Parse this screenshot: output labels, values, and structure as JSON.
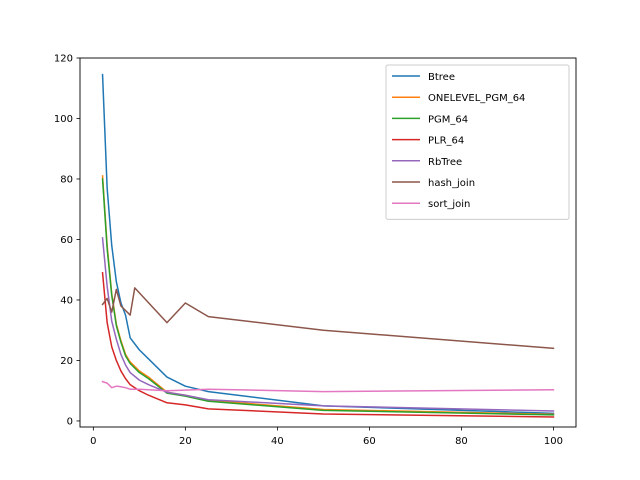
{
  "chart_data": {
    "type": "line",
    "title": "",
    "xlabel": "",
    "ylabel": "",
    "xlim": [
      -2.9,
      104.9
    ],
    "ylim": [
      -2.0,
      120.0
    ],
    "xticks": [
      0,
      20,
      40,
      60,
      80,
      100
    ],
    "yticks": [
      0,
      20,
      40,
      60,
      80,
      100,
      120
    ],
    "grid": false,
    "legend_position": "upper right",
    "series": [
      {
        "name": "Btree",
        "color": "#1f77b4",
        "points": [
          [
            2,
            114.5
          ],
          [
            3,
            77.0
          ],
          [
            4,
            58.0
          ],
          [
            5,
            46.0
          ],
          [
            6,
            39.0
          ],
          [
            7,
            35.0
          ],
          [
            8,
            27.5
          ],
          [
            10,
            23.5
          ],
          [
            12,
            20.5
          ],
          [
            16,
            14.5
          ],
          [
            20,
            11.5
          ],
          [
            25,
            9.7
          ],
          [
            50,
            5.0
          ],
          [
            100,
            2.5
          ]
        ]
      },
      {
        "name": "ONELEVEL_PGM_64",
        "color": "#ff7f0e",
        "points": [
          [
            2,
            81.0
          ],
          [
            3,
            58.0
          ],
          [
            4,
            42.0
          ],
          [
            5,
            32.0
          ],
          [
            6,
            26.5
          ],
          [
            7,
            22.0
          ],
          [
            8,
            19.5
          ],
          [
            10,
            16.5
          ],
          [
            12,
            14.5
          ],
          [
            16,
            9.5
          ],
          [
            20,
            8.5
          ],
          [
            25,
            6.8
          ],
          [
            50,
            3.8
          ],
          [
            100,
            2.2
          ]
        ]
      },
      {
        "name": "PGM_64",
        "color": "#2ca02c",
        "points": [
          [
            2,
            80.0
          ],
          [
            3,
            57.0
          ],
          [
            4,
            41.5
          ],
          [
            5,
            31.5
          ],
          [
            6,
            26.0
          ],
          [
            7,
            21.5
          ],
          [
            8,
            19.0
          ],
          [
            10,
            16.0
          ],
          [
            12,
            14.0
          ],
          [
            16,
            9.2
          ],
          [
            20,
            8.2
          ],
          [
            25,
            6.5
          ],
          [
            50,
            3.5
          ],
          [
            100,
            2.0
          ]
        ]
      },
      {
        "name": "PLR_64",
        "color": "#d62728",
        "points": [
          [
            2,
            49.0
          ],
          [
            3,
            32.5
          ],
          [
            4,
            24.5
          ],
          [
            5,
            20.0
          ],
          [
            6,
            16.5
          ],
          [
            7,
            14.0
          ],
          [
            8,
            12.0
          ],
          [
            10,
            10.0
          ],
          [
            12,
            8.5
          ],
          [
            16,
            6.0
          ],
          [
            20,
            5.3
          ],
          [
            25,
            4.0
          ],
          [
            50,
            2.3
          ],
          [
            100,
            1.3
          ]
        ]
      },
      {
        "name": "RbTree",
        "color": "#9467bd",
        "points": [
          [
            2,
            60.5
          ],
          [
            3,
            44.5
          ],
          [
            4,
            33.0
          ],
          [
            5,
            27.0
          ],
          [
            6,
            22.0
          ],
          [
            7,
            18.5
          ],
          [
            8,
            16.0
          ],
          [
            10,
            13.5
          ],
          [
            12,
            12.0
          ],
          [
            16,
            9.5
          ],
          [
            20,
            8.5
          ],
          [
            25,
            7.0
          ],
          [
            50,
            5.0
          ],
          [
            100,
            3.3
          ]
        ]
      },
      {
        "name": "hash_join",
        "color": "#8c564b",
        "points": [
          [
            2,
            38.5
          ],
          [
            3,
            40.5
          ],
          [
            4,
            36.0
          ],
          [
            5,
            43.5
          ],
          [
            6,
            38.0
          ],
          [
            8,
            35.0
          ],
          [
            9,
            44.0
          ],
          [
            16,
            32.5
          ],
          [
            20,
            39.0
          ],
          [
            25,
            34.5
          ],
          [
            50,
            30.0
          ],
          [
            100,
            24.0
          ]
        ]
      },
      {
        "name": "sort_join",
        "color": "#e377c2",
        "points": [
          [
            2,
            13.0
          ],
          [
            3,
            12.5
          ],
          [
            4,
            11.0
          ],
          [
            5,
            11.5
          ],
          [
            6,
            11.3
          ],
          [
            7,
            11.0
          ],
          [
            8,
            10.5
          ],
          [
            10,
            10.5
          ],
          [
            12,
            10.3
          ],
          [
            16,
            10.0
          ],
          [
            20,
            10.2
          ],
          [
            25,
            10.5
          ],
          [
            50,
            9.7
          ],
          [
            100,
            10.3
          ]
        ]
      }
    ]
  }
}
